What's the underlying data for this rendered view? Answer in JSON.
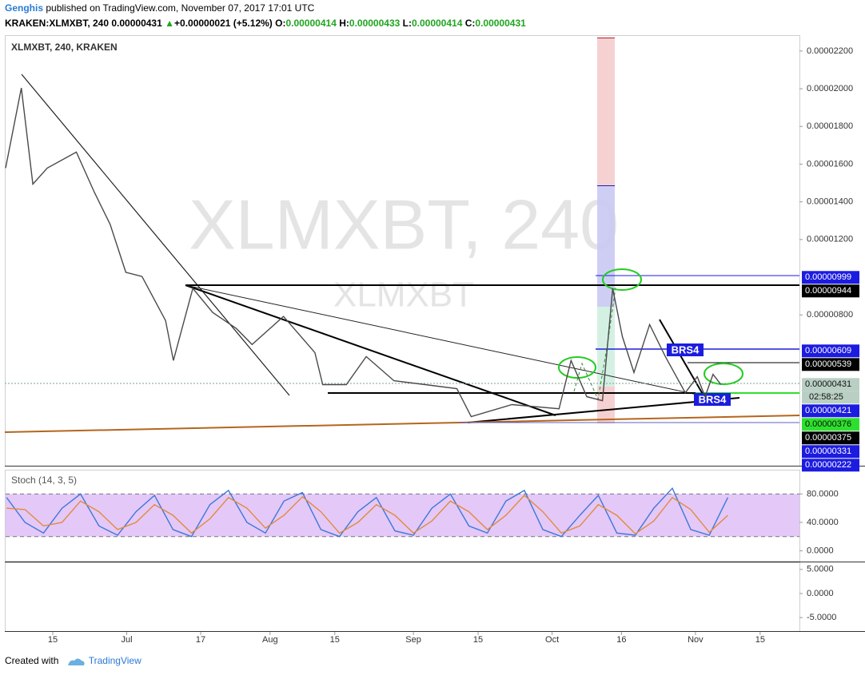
{
  "header": {
    "author": "Genghis",
    "published": "published on TradingView.com, November 07, 2017 17:01 UTC",
    "symbol": "KRAKEN:XLMXBT, 240",
    "last": "0.00000431",
    "arrow": "▲",
    "change": "+0.00000021 (+5.12%)",
    "o_label": "O:",
    "o": "0.00000414",
    "h_label": "H:",
    "h": "0.00000433",
    "l_label": "L:",
    "l": "0.00000414",
    "c_label": "C:",
    "c": "0.00000431"
  },
  "footer": {
    "created": "Created with",
    "brand": "TradingView"
  },
  "chart_data": [
    {
      "type": "line",
      "title": "XLMXBT, 240, KRAKEN",
      "watermark": "XLMXBT, 240",
      "watermark_sub": "XLMXBT",
      "countdown": "02:58:25",
      "annotations": [
        "BRS4",
        "BRS4"
      ],
      "color": "#4a4a4a",
      "xlim": [
        3.8,
        175.5
      ],
      "xticks": [
        {
          "value": 14,
          "label": "15"
        },
        {
          "value": 30,
          "label": "Jul"
        },
        {
          "value": 46,
          "label": "17"
        },
        {
          "value": 61,
          "label": "Aug"
        },
        {
          "value": 75,
          "label": "15"
        },
        {
          "value": 92,
          "label": "Sep"
        },
        {
          "value": 106,
          "label": "15"
        },
        {
          "value": 122,
          "label": "Oct"
        },
        {
          "value": 137,
          "label": "16"
        },
        {
          "value": 153,
          "label": "Nov"
        },
        {
          "value": 167,
          "label": "15"
        }
      ],
      "ylim": [
        0,
        2.28e-05
      ],
      "yticks": [
        {
          "value": 2.2e-05,
          "label": "0.00002200"
        },
        {
          "value": 2e-05,
          "label": "0.00002000"
        },
        {
          "value": 1.8e-05,
          "label": "0.00001800"
        },
        {
          "value": 1.6e-05,
          "label": "0.00001600"
        },
        {
          "value": 1.4e-05,
          "label": "0.00001400"
        },
        {
          "value": 1.2e-05,
          "label": "0.00001200"
        },
        {
          "value": 8e-06,
          "label": "0.00000800"
        }
      ],
      "x": [
        3.8,
        7.2,
        9.7,
        12.8,
        19.1,
        23.0,
        26.4,
        29.8,
        33.3,
        38.4,
        40.1,
        44.3,
        48.6,
        53.7,
        57.1,
        63.9,
        70.7,
        72.4,
        77.5,
        81.8,
        87.8,
        94.6,
        101.4,
        104.5,
        113.3,
        123.5,
        126.1,
        129.5,
        132.9,
        135.1,
        137.2,
        139.7,
        143.1,
        146.5,
        150.8,
        153.4,
        155.1,
        156.8,
        158.5
      ],
      "values": [
        1.579e-05,
        2.004e-05,
        1.494e-05,
        1.579e-05,
        1.664e-05,
        1.451e-05,
        1.281e-05,
        1.026e-05,
        1.004e-05,
        7.7e-06,
        5.58e-06,
        9.41e-06,
        8.13e-06,
        7.28e-06,
        6.43e-06,
        7.92e-06,
        6e-06,
        4.3e-06,
        4.3e-06,
        5.79e-06,
        4.51e-06,
        4.3e-06,
        4.09e-06,
        2.6e-06,
        3.24e-06,
        3.02e-06,
        5.58e-06,
        3.66e-06,
        3.45e-06,
        9.41e-06,
        6.85e-06,
        4.94e-06,
        7.49e-06,
        5.79e-06,
        3.87e-06,
        4.72e-06,
        3.66e-06,
        4.85e-06,
        4.31e-06
      ],
      "price_labels": [
        {
          "value": 9.99e-06,
          "label": "0.00000999",
          "color": "#1c1ce0"
        },
        {
          "value": 9.44e-06,
          "label": "0.00000944",
          "color": "#000000"
        },
        {
          "value": 6.09e-06,
          "label": "0.00000609",
          "color": "#1c1ce0"
        },
        {
          "value": 5.39e-06,
          "label": "0.00000539",
          "color": "#000000"
        },
        {
          "value": 4.31e-06,
          "label": "0.00000431",
          "color": "#b9cfc3"
        },
        {
          "value": 4.21e-06,
          "label": "0.00000421",
          "color": "#1c1ce0"
        },
        {
          "value": 3.76e-06,
          "label": "0.00000376",
          "color": "#2ee02e"
        },
        {
          "value": 3.75e-06,
          "label": "0.00000375",
          "color": "#000000"
        },
        {
          "value": 3.31e-06,
          "label": "0.00000331",
          "color": "#1c1ce0"
        },
        {
          "value": 2.22e-06,
          "label": "0.00000222",
          "color": "#1c1ce0"
        }
      ]
    },
    {
      "type": "line",
      "title": "Stoch (14, 3, 5)",
      "ylim": [
        -14,
        113
      ],
      "yticks": [
        {
          "value": 80,
          "label": "80.0000"
        },
        {
          "value": 40,
          "label": "40.0000"
        },
        {
          "value": 0,
          "label": "0.0000"
        }
      ],
      "bands": [
        80,
        20
      ],
      "x": [
        4,
        8,
        12,
        16,
        20,
        24,
        28,
        32,
        36,
        40,
        44,
        48,
        52,
        56,
        60,
        64,
        68,
        72,
        76,
        80,
        84,
        88,
        92,
        96,
        100,
        104,
        108,
        112,
        116,
        120,
        124,
        128,
        132,
        136,
        140,
        144,
        148,
        152,
        156,
        160
      ],
      "series": [
        {
          "color": "#3c78d8",
          "values": [
            75,
            40,
            25,
            60,
            80,
            35,
            22,
            55,
            78,
            30,
            20,
            65,
            85,
            40,
            25,
            70,
            82,
            30,
            20,
            55,
            75,
            28,
            22,
            60,
            80,
            35,
            25,
            70,
            85,
            30,
            20,
            50,
            78,
            25,
            22,
            60,
            88,
            30,
            22,
            75
          ]
        },
        {
          "color": "#e08c3c",
          "values": [
            60,
            58,
            35,
            40,
            70,
            55,
            30,
            40,
            65,
            50,
            25,
            45,
            75,
            60,
            32,
            50,
            76,
            55,
            25,
            40,
            65,
            50,
            25,
            42,
            70,
            55,
            30,
            50,
            78,
            55,
            25,
            35,
            65,
            50,
            24,
            42,
            75,
            58,
            26,
            50
          ]
        }
      ]
    },
    {
      "type": "line",
      "ylim": [
        -7.8,
        6.3
      ],
      "yticks": [
        {
          "value": 5,
          "label": "5.0000"
        },
        {
          "value": 0,
          "label": "0.0000"
        },
        {
          "value": -5,
          "label": "-5.0000"
        }
      ]
    }
  ]
}
